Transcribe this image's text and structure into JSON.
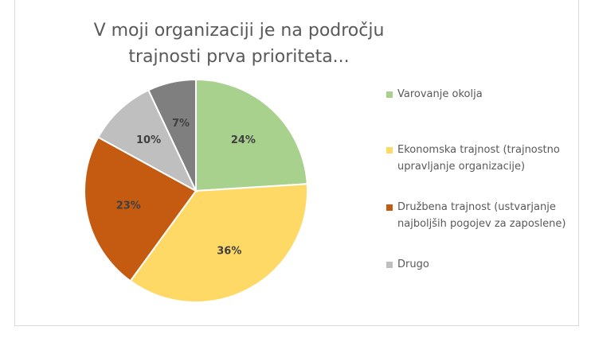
{
  "chart_data": {
    "type": "pie",
    "title": "V moji organizaciji je na področju trajnosti prva prioriteta...",
    "categories": [
      "Varovanje okolja",
      "Ekonomska trajnost (trajnostno upravljanje organizacije)",
      "Družbena trajnost (ustvarjanje najboljših pogojev za zaposlene)",
      "Drugo",
      null
    ],
    "values": [
      24,
      36,
      23,
      10,
      7
    ],
    "value_labels": [
      "24%",
      "36%",
      "23%",
      "10%",
      "7%"
    ],
    "colors": [
      "#a9d18e",
      "#ffd966",
      "#c55a11",
      "#bfbfbf",
      "#7f7f7f"
    ]
  }
}
